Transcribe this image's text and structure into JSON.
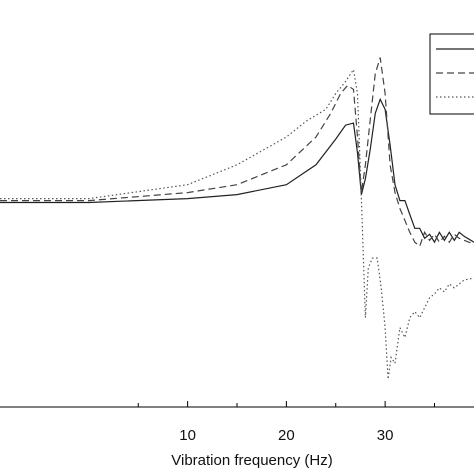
{
  "chart_data": {
    "type": "line",
    "title": "",
    "xlabel": "Vibration frequency (Hz)",
    "ylabel": "",
    "xlim": [
      -9,
      39
    ],
    "ylim": [
      -1.0,
      1.0
    ],
    "xticks": [
      10,
      20,
      30
    ],
    "grid": false,
    "legend": {
      "position": "top-right",
      "entries_visible_text": false
    },
    "series": [
      {
        "style": "solid",
        "color": "#222222",
        "x": [
          -9,
          0,
          10,
          15,
          20,
          23,
          25,
          26,
          26.8,
          27.2,
          27.6,
          28.0,
          28.5,
          29.0,
          29.5,
          30.0,
          30.5,
          31.0,
          31.5,
          32.0,
          32.5,
          33.0,
          33.5,
          34.0,
          34.5,
          35.0,
          35.5,
          36.0,
          36.5,
          37.0,
          37.5,
          38.0,
          39
        ],
        "y": [
          0.03,
          0.03,
          0.05,
          0.07,
          0.12,
          0.22,
          0.35,
          0.42,
          0.43,
          0.28,
          0.07,
          0.15,
          0.3,
          0.48,
          0.55,
          0.5,
          0.32,
          0.12,
          0.04,
          0.04,
          -0.03,
          -0.1,
          -0.1,
          -0.15,
          -0.13,
          -0.17,
          -0.12,
          -0.16,
          -0.12,
          -0.16,
          -0.12,
          -0.14,
          -0.17
        ]
      },
      {
        "style": "dashed",
        "color": "#444444",
        "x": [
          -9,
          0,
          10,
          15,
          20,
          23,
          24.5,
          25.5,
          26.2,
          26.8,
          27.2,
          27.6,
          28.0,
          28.5,
          29.0,
          29.5,
          30.0,
          30.5,
          31.0,
          31.5,
          32.0,
          32.5,
          33.0,
          33.5,
          34.0,
          34.5,
          35.0,
          35.5,
          36.0,
          36.5,
          37.0,
          37.5,
          38.0,
          39
        ],
        "y": [
          0.04,
          0.04,
          0.08,
          0.12,
          0.22,
          0.36,
          0.48,
          0.58,
          0.62,
          0.6,
          0.36,
          0.08,
          0.22,
          0.45,
          0.68,
          0.76,
          0.58,
          0.22,
          0.08,
          0.0,
          -0.06,
          -0.12,
          -0.17,
          -0.19,
          -0.12,
          -0.16,
          -0.13,
          -0.17,
          -0.14,
          -0.17,
          -0.13,
          -0.15,
          -0.16,
          -0.18
        ]
      },
      {
        "style": "dotted",
        "color": "#555555",
        "x": [
          -9,
          0,
          10,
          15,
          20,
          22,
          24,
          25,
          26,
          26.8,
          27.2,
          27.6,
          28.0,
          28.3,
          28.7,
          29.2,
          29.6,
          30.0,
          30.3,
          30.6,
          31.0,
          31.5,
          32.0,
          32.5,
          33.0,
          33.5,
          34.0,
          34.5,
          35.0,
          35.5,
          36.0,
          36.5,
          37.0,
          38.0,
          39
        ],
        "y": [
          0.05,
          0.05,
          0.12,
          0.22,
          0.36,
          0.44,
          0.5,
          0.58,
          0.64,
          0.7,
          0.58,
          0.05,
          -0.55,
          -0.3,
          -0.25,
          -0.25,
          -0.4,
          -0.6,
          -0.86,
          -0.75,
          -0.78,
          -0.6,
          -0.65,
          -0.55,
          -0.52,
          -0.55,
          -0.5,
          -0.45,
          -0.43,
          -0.4,
          -0.42,
          -0.38,
          -0.4,
          -0.36,
          -0.35
        ]
      }
    ]
  }
}
